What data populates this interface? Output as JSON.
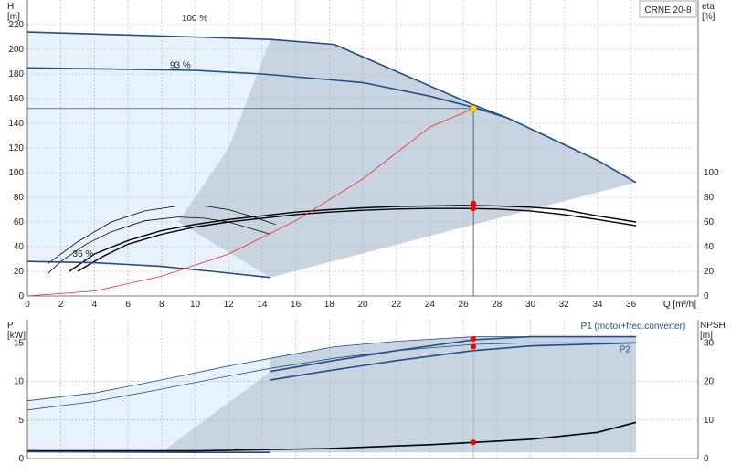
{
  "model_label": "CRNE 20-8",
  "colors": {
    "curve_dark_blue": "#1f4e8c",
    "curve_black": "#000000",
    "area_light": "#e8f2fc",
    "area_gray": "#c8d4e0",
    "system_red": "#ff2020",
    "operating_point_yellow": "#ffd400",
    "marker_red": "#ff0000"
  },
  "chart_data": [
    {
      "type": "line",
      "title": "",
      "ylabel_left": "H\n[m]",
      "ylabel_right": "eta\n[%]",
      "xlabel": "Q [m³/h]",
      "xlim": [
        0,
        40
      ],
      "ylim_left": [
        0,
        240
      ],
      "ylim_right": [
        0,
        240
      ],
      "x_ticks": [
        "0",
        "2",
        "4",
        "6",
        "8",
        "10",
        "12",
        "14",
        "16",
        "18",
        "20",
        "22",
        "24",
        "26",
        "28",
        "30",
        "32",
        "34",
        "36"
      ],
      "y_ticks_left": [
        "0",
        "20",
        "40",
        "60",
        "80",
        "100",
        "120",
        "140",
        "160",
        "180",
        "200",
        "220"
      ],
      "y_ticks_right": [
        "0",
        "20",
        "40",
        "60",
        "80",
        "100"
      ],
      "speed_labels": [
        {
          "text": "100 %",
          "x": 9.2,
          "y": 223
        },
        {
          "text": "93 %",
          "x": 8.5,
          "y": 185
        },
        {
          "text": "36 %",
          "x": 2.7,
          "y": 32
        }
      ],
      "series": [
        {
          "name": "100 %",
          "x": [
            0,
            5,
            10,
            14.5,
            18.3,
            26.6,
            28.7,
            34,
            36.3
          ],
          "y": [
            214,
            212,
            210,
            208,
            204,
            155,
            144,
            110,
            92
          ]
        },
        {
          "name": "93 %",
          "x": [
            0,
            5,
            10,
            14,
            20,
            24,
            26.6,
            28.7
          ],
          "y": [
            185,
            184,
            183,
            180,
            173,
            162,
            153,
            144
          ]
        },
        {
          "name": "36 %",
          "x": [
            0,
            4,
            8,
            11,
            14.5
          ],
          "y": [
            28,
            27,
            24,
            20,
            15
          ]
        },
        {
          "name": "system",
          "x": [
            0,
            4,
            8,
            12,
            16,
            20,
            24,
            26.6
          ],
          "y": [
            0,
            4,
            16,
            34,
            61,
            95,
            137,
            152
          ]
        }
      ],
      "efficiency_curves": [
        {
          "x": [
            2.5,
            4,
            6,
            8,
            10,
            12,
            14,
            16,
            18,
            20,
            22,
            24,
            26,
            28,
            30,
            32,
            34,
            36.3
          ],
          "y": [
            20,
            34,
            45,
            53,
            58,
            62,
            65,
            68,
            70,
            71.5,
            72.5,
            73,
            73.5,
            73,
            72,
            70,
            65,
            60
          ]
        },
        {
          "x": [
            3,
            4.5,
            6,
            8,
            10,
            12,
            14,
            16,
            18,
            20,
            22,
            24,
            26,
            28,
            30,
            32,
            34,
            36.3
          ],
          "y": [
            20,
            32,
            42,
            50,
            56,
            60,
            63,
            66,
            68,
            69.5,
            70.5,
            71,
            71,
            70.5,
            69,
            66,
            62,
            57
          ]
        },
        {
          "x": [
            1.2,
            2,
            3.5,
            5,
            7,
            9,
            10.5,
            12,
            14.5
          ],
          "y": [
            18,
            28,
            42,
            52,
            61,
            64,
            63,
            60,
            50
          ]
        },
        {
          "x": [
            1.2,
            3,
            5,
            7,
            9,
            10.5,
            12,
            13.5,
            14.8
          ],
          "y": [
            26,
            44,
            60,
            69,
            73,
            73,
            70,
            64,
            58
          ]
        }
      ],
      "operating_point": {
        "x": 26.6,
        "y": 152
      },
      "eta_points": [
        {
          "x": 26.6,
          "y": 75
        },
        {
          "x": 26.6,
          "y": 71
        }
      ]
    },
    {
      "type": "line",
      "title": "",
      "ylabel_left": "P\n[kW]",
      "ylabel_right": "NPSH\n[m]",
      "xlim": [
        0,
        40
      ],
      "ylim_left": [
        0,
        18
      ],
      "ylim_right": [
        0,
        36
      ],
      "y_ticks_left": [
        "0",
        "5",
        "10",
        "15"
      ],
      "y_ticks_right": [
        "0",
        "10",
        "20",
        "30"
      ],
      "series_labels": [
        {
          "text": "P1 (motor+freq.converter)",
          "x": 33,
          "y": 16.8
        },
        {
          "text": "P2",
          "x": 35.3,
          "y": 13.8
        }
      ],
      "series": [
        {
          "name": "P1 (motor+freq.converter)",
          "x": [
            0,
            4,
            8,
            12,
            14.5,
            18.3,
            22,
            26.6,
            30,
            36.3
          ],
          "y": [
            7.5,
            8.5,
            10.2,
            12,
            13,
            14.5,
            15.2,
            15.8,
            15.8,
            15.8
          ]
        },
        {
          "name": "P2",
          "x": [
            0,
            4,
            8,
            12,
            14.5,
            18.3,
            22,
            26.6,
            30,
            36.3
          ],
          "y": [
            6.3,
            7.4,
            9,
            10.7,
            11.7,
            13,
            14,
            14.8,
            15,
            15
          ]
        },
        {
          "name": "P1 93%",
          "x": [
            14.5,
            18,
            22,
            26.6,
            30,
            36.3
          ],
          "y": [
            11.3,
            12.6,
            14,
            15.4,
            15.8,
            15.8
          ]
        },
        {
          "name": "P2 93%",
          "x": [
            14.5,
            18,
            22,
            26.6,
            30,
            36.3
          ],
          "y": [
            10.2,
            11.4,
            12.7,
            14,
            14.6,
            15
          ]
        },
        {
          "name": "NPSH",
          "x": [
            0,
            10,
            18,
            24,
            26.6,
            30,
            34,
            36.3
          ],
          "y": [
            2,
            2,
            2.6,
            3.6,
            4.2,
            5,
            6.8,
            9.4
          ]
        },
        {
          "name": "36 % P",
          "x": [
            0,
            5,
            10,
            14.5
          ],
          "y": [
            0.9,
            0.85,
            0.8,
            0.8
          ]
        }
      ],
      "power_points": [
        {
          "x": 26.6,
          "y": 15.5
        },
        {
          "x": 26.6,
          "y": 14.5
        },
        {
          "x": 26.6,
          "y": 2.1
        }
      ]
    }
  ]
}
